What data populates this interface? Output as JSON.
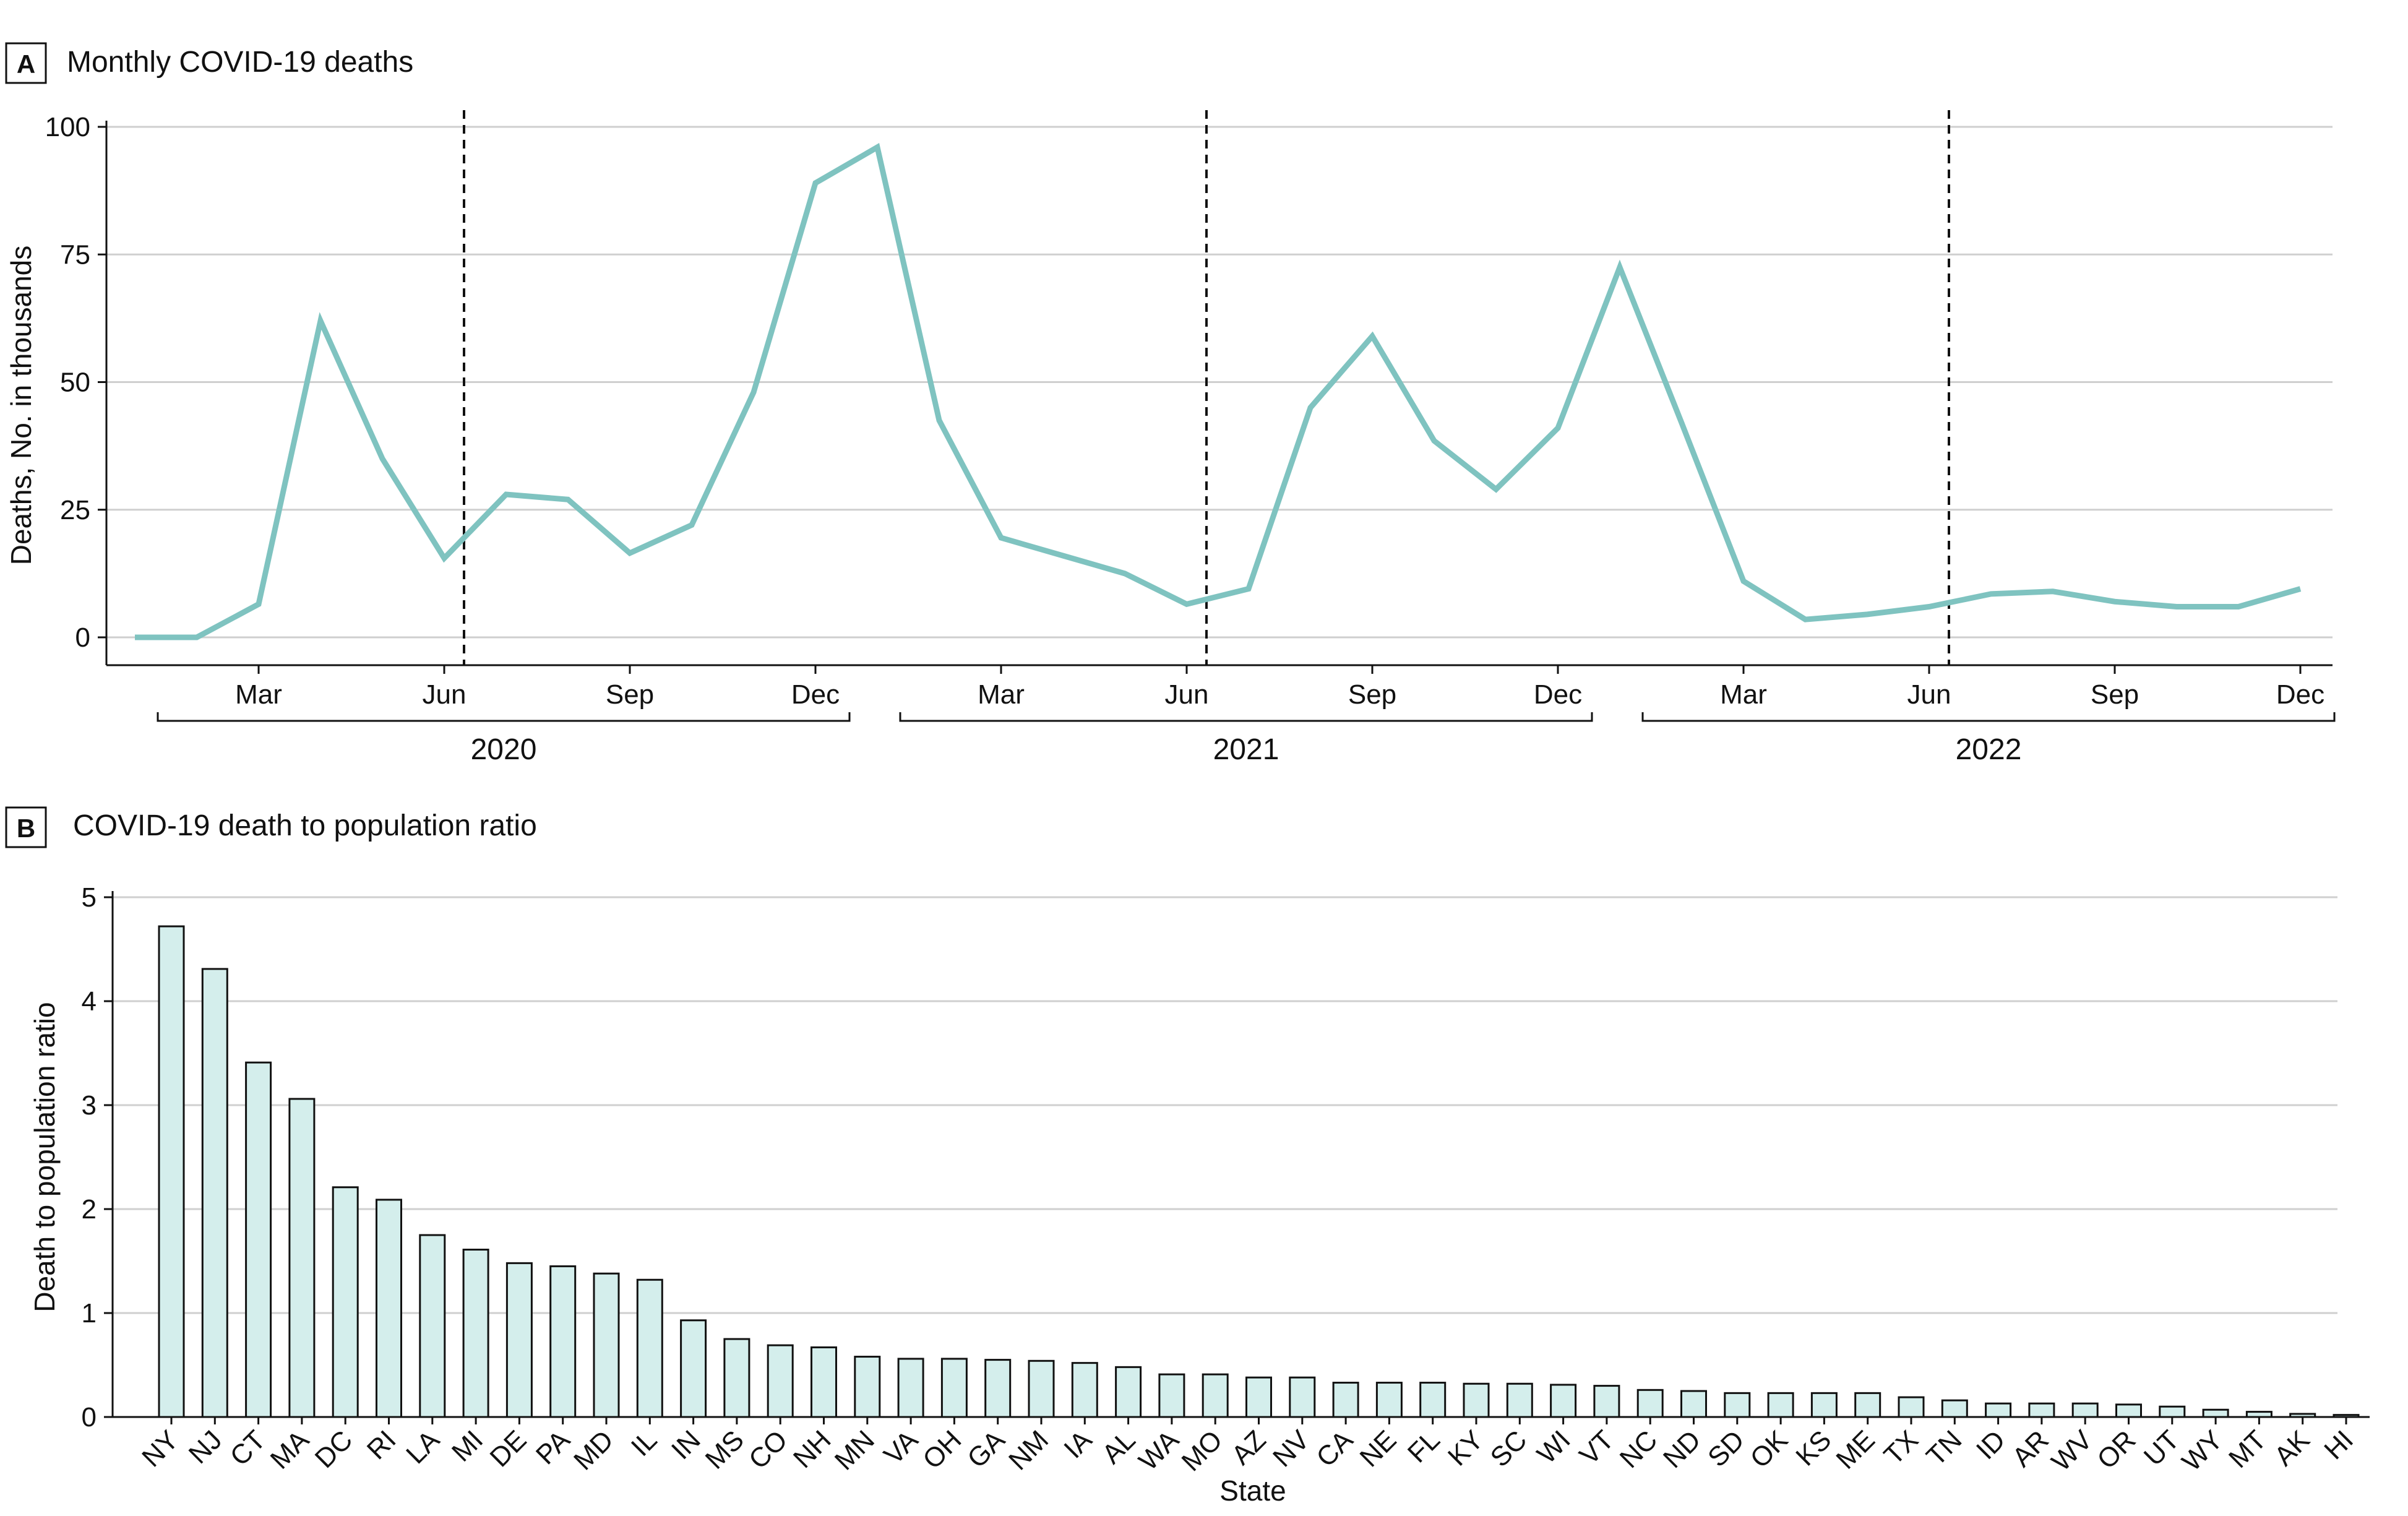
{
  "chart_data": [
    {
      "type": "line",
      "panel_label": "A",
      "title": "Monthly COVID-19 deaths",
      "ylabel": "Deaths, No. in thousands",
      "xlabel": "",
      "ylim": [
        0,
        100
      ],
      "yticks": [
        0,
        25,
        50,
        75,
        100
      ],
      "grid": true,
      "color": "#7fc3c0",
      "month_labels": [
        "Mar",
        "Jun",
        "Sep",
        "Dec"
      ],
      "month_label_indices": [
        2,
        5,
        8,
        11
      ],
      "years": [
        "2020",
        "2021",
        "2022"
      ],
      "year_boundary_index": 5.5,
      "series": [
        {
          "name": "Monthly COVID-19 deaths",
          "values": [
            [
              0,
              0,
              6.5,
              62,
              35,
              15.5,
              28,
              27,
              16.5,
              22,
              48,
              89,
              96
            ],
            [
              42.5,
              19.5,
              16,
              12.5,
              6.5,
              9.5,
              45,
              59,
              38.5,
              29,
              41,
              72.5
            ],
            [
              42,
              11,
              3.5,
              4.5,
              6,
              8.5,
              9,
              7,
              6,
              6,
              9.5
            ]
          ]
        }
      ],
      "x_start_month_index": 0
    },
    {
      "type": "bar",
      "panel_label": "B",
      "title": "COVID-19 death to population ratio",
      "xlabel": "State",
      "ylabel": "Death to population ratio",
      "ylim": [
        0,
        5
      ],
      "yticks": [
        0,
        1,
        2,
        3,
        4,
        5
      ],
      "grid": true,
      "bar_color": "#d4eeec",
      "categories": [
        "NY",
        "NJ",
        "CT",
        "MA",
        "DC",
        "RI",
        "LA",
        "MI",
        "DE",
        "PA",
        "MD",
        "IL",
        "IN",
        "MS",
        "CO",
        "NH",
        "MN",
        "VA",
        "OH",
        "GA",
        "NM",
        "IA",
        "AL",
        "WA",
        "MO",
        "AZ",
        "NV",
        "CA",
        "NE",
        "FL",
        "KY",
        "SC",
        "WI",
        "VT",
        "NC",
        "ND",
        "SD",
        "OK",
        "KS",
        "ME",
        "TX",
        "TN",
        "ID",
        "AR",
        "WV",
        "OR",
        "UT",
        "WY",
        "MT",
        "AK",
        "HI"
      ],
      "values": [
        4.72,
        4.31,
        3.41,
        3.06,
        2.21,
        2.09,
        1.75,
        1.61,
        1.48,
        1.45,
        1.38,
        1.32,
        0.93,
        0.75,
        0.69,
        0.67,
        0.58,
        0.56,
        0.56,
        0.55,
        0.54,
        0.52,
        0.48,
        0.41,
        0.41,
        0.38,
        0.38,
        0.33,
        0.33,
        0.33,
        0.32,
        0.32,
        0.31,
        0.3,
        0.26,
        0.25,
        0.23,
        0.23,
        0.23,
        0.23,
        0.19,
        0.16,
        0.13,
        0.13,
        0.13,
        0.12,
        0.1,
        0.07,
        0.05,
        0.03,
        0.02
      ]
    }
  ]
}
